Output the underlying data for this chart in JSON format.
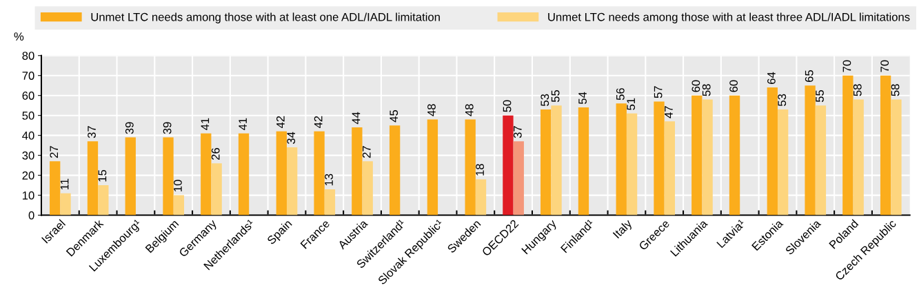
{
  "chart_data": {
    "type": "bar",
    "ylabel": "%",
    "categories": [
      "Israel",
      "Denmark",
      "Luxembourg¹",
      "Belgium",
      "Germany",
      "Netherlands¹",
      "Spain",
      "France",
      "Austria",
      "Switzerland¹",
      "Slovak Republic¹",
      "Sweden",
      "OECD22",
      "Hungary",
      "Finland¹",
      "Italy",
      "Greece",
      "Lithuania",
      "Latvia¹",
      "Estonia",
      "Slovenia",
      "Poland",
      "Czech Republic"
    ],
    "series": [
      {
        "name": "Unmet LTC needs among those with at least one ADL/IADL limitation",
        "color": "#fbad1c",
        "colors": [
          "#fbad1c",
          "#fbad1c",
          "#fbad1c",
          "#fbad1c",
          "#fbad1c",
          "#fbad1c",
          "#fbad1c",
          "#fbad1c",
          "#fbad1c",
          "#fbad1c",
          "#fbad1c",
          "#fbad1c",
          "#e01c24",
          "#fbad1c",
          "#fbad1c",
          "#fbad1c",
          "#fbad1c",
          "#fbad1c",
          "#fbad1c",
          "#fbad1c",
          "#fbad1c",
          "#fbad1c",
          "#fbad1c"
        ],
        "values": [
          27,
          37,
          39,
          39,
          41,
          41,
          42,
          42,
          44,
          45,
          48,
          48,
          50,
          53,
          54,
          56,
          57,
          60,
          60,
          64,
          65,
          70,
          70
        ]
      },
      {
        "name": "Unmet LTC needs among those with at least three ADL/IADL limitations",
        "color": "#fdd57e",
        "colors": [
          "#fdd57e",
          "#fdd57e",
          "#fdd57e",
          "#fdd57e",
          "#fdd57e",
          "#fdd57e",
          "#fdd57e",
          "#fdd57e",
          "#fdd57e",
          "#fdd57e",
          "#fdd57e",
          "#fdd57e",
          "#f4977a",
          "#fdd57e",
          "#fdd57e",
          "#fdd57e",
          "#fdd57e",
          "#fdd57e",
          "#fdd57e",
          "#fdd57e",
          "#fdd57e",
          "#fdd57e",
          "#fdd57e"
        ],
        "values": [
          11,
          15,
          null,
          10,
          26,
          null,
          34,
          13,
          27,
          null,
          null,
          18,
          37,
          55,
          null,
          51,
          47,
          58,
          null,
          53,
          55,
          58,
          58
        ]
      }
    ],
    "ylim": [
      0,
      80
    ],
    "yticks": [
      0,
      10,
      20,
      30,
      40,
      50,
      60,
      70,
      80
    ],
    "grid": true,
    "legend": "top",
    "data_labels": true
  }
}
